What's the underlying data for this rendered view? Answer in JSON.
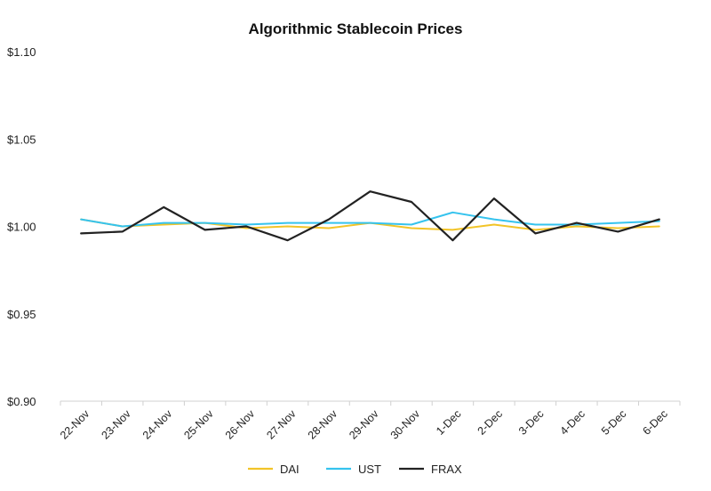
{
  "chart_data": {
    "type": "line",
    "title": "Algorithmic Stablecoin Prices",
    "xlabel": "",
    "ylabel": "",
    "ylim": [
      0.9,
      1.1
    ],
    "yticks": [
      1.1,
      1.05,
      1.0,
      0.95,
      0.9
    ],
    "ytick_labels": [
      "$1.10",
      "$1.05",
      "$1.00",
      "$0.95",
      "$0.90"
    ],
    "grid": false,
    "legend_position": "bottom",
    "categories": [
      "22-Nov",
      "23-Nov",
      "24-Nov",
      "25-Nov",
      "26-Nov",
      "27-Nov",
      "28-Nov",
      "29-Nov",
      "30-Nov",
      "1-Dec",
      "2-Dec",
      "3-Dec",
      "4-Dec",
      "5-Dec",
      "6-Dec"
    ],
    "series": [
      {
        "name": "DAI",
        "color": "#f2c428",
        "values": [
          1.004,
          1.0,
          1.001,
          1.002,
          0.999,
          1.0,
          0.999,
          1.002,
          0.999,
          0.998,
          1.001,
          0.998,
          1.0,
          0.999,
          1.0
        ]
      },
      {
        "name": "UST",
        "color": "#35c3ee",
        "values": [
          1.004,
          1.0,
          1.002,
          1.002,
          1.001,
          1.002,
          1.002,
          1.002,
          1.001,
          1.008,
          1.004,
          1.001,
          1.001,
          1.002,
          1.003
        ]
      },
      {
        "name": "FRAX",
        "color": "#222222",
        "values": [
          0.996,
          0.997,
          1.011,
          0.998,
          1.0,
          0.992,
          1.004,
          1.02,
          1.014,
          0.992,
          1.016,
          0.996,
          1.002,
          0.997,
          1.004
        ]
      }
    ]
  }
}
